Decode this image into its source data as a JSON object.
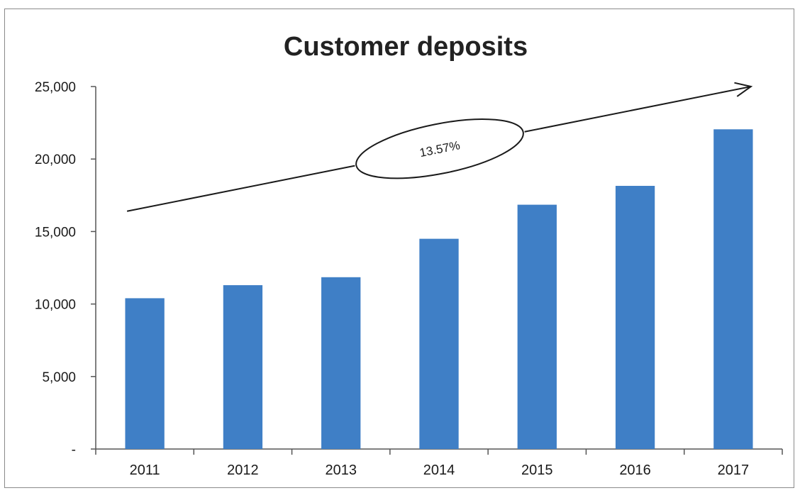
{
  "chart_data": {
    "type": "bar",
    "title": "Customer deposits",
    "xlabel": "",
    "ylabel": "",
    "categories": [
      "2011",
      "2012",
      "2013",
      "2014",
      "2015",
      "2016",
      "2017"
    ],
    "values": [
      10400,
      11300,
      11850,
      14500,
      16850,
      18150,
      22050
    ],
    "ylim": [
      0,
      25000
    ],
    "yticks": [
      0,
      5000,
      10000,
      15000,
      20000,
      25000
    ],
    "ytick_labels": [
      "-",
      "5,000",
      "10,000",
      "15,000",
      "20,000",
      "25,000"
    ],
    "bar_color": "#3f7fc6",
    "grid": false,
    "legend": "none",
    "annotation": {
      "label": "13.57%",
      "arrow_start": {
        "category": "2011",
        "value": 16400
      },
      "arrow_end": {
        "category": "2017",
        "value": 25000
      }
    }
  }
}
